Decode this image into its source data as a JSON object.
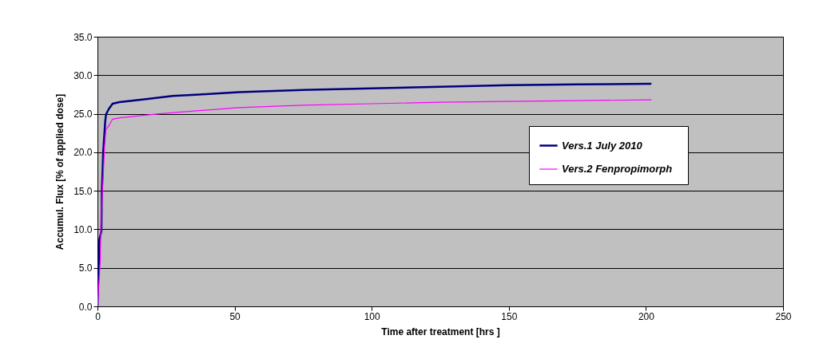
{
  "chart_data": {
    "type": "line",
    "xlabel": "Time after treatment [hrs ]",
    "ylabel": "Accumul. Flux [% of applied dose]",
    "xlim": [
      0,
      250
    ],
    "xticks": [
      0,
      50,
      100,
      150,
      200,
      250
    ],
    "ylim": [
      0,
      35
    ],
    "yticks": [
      {
        "value": 0,
        "label": "0.0"
      },
      {
        "value": 5,
        "label": "5.0"
      },
      {
        "value": 10,
        "label": "10.0"
      },
      {
        "value": 15,
        "label": "15.0"
      },
      {
        "value": 20,
        "label": "20.0"
      },
      {
        "value": 25,
        "label": "25.0"
      },
      {
        "value": 30,
        "label": "30.0"
      },
      {
        "value": 35,
        "label": "35.0"
      }
    ],
    "grid": "y",
    "legend": "right",
    "line_style": "solid",
    "series": [
      {
        "name": "Vers.1   July 2010",
        "color": "#000080",
        "x": [
          0,
          0.2,
          0.7,
          1.4,
          1.6,
          2.1,
          2.8,
          3.1,
          4.1,
          5.5,
          8,
          17.7,
          27.4,
          37.1,
          51.6,
          75,
          100,
          125,
          150,
          175,
          202
        ],
        "values": [
          0,
          2.1,
          8.7,
          9.7,
          14.9,
          20.1,
          23.9,
          24.9,
          25.6,
          26.3,
          26.5,
          26.9,
          27.3,
          27.5,
          27.8,
          28.1,
          28.3,
          28.5,
          28.7,
          28.8,
          28.9
        ]
      },
      {
        "name": "Vers.2   Fenpropimorph",
        "color": "#ff00ff",
        "x": [
          0,
          0.4,
          1,
          1.4,
          2,
          2.6,
          3.1,
          4.1,
          5.5,
          8.9,
          22.5,
          37,
          51.6,
          75,
          100,
          125,
          150,
          175,
          202
        ],
        "values": [
          0,
          2.5,
          5.6,
          12.1,
          16.3,
          20.8,
          23,
          23.4,
          24.3,
          24.5,
          25,
          25.4,
          25.8,
          26.1,
          26.3,
          26.5,
          26.6,
          26.7,
          26.8
        ]
      }
    ]
  }
}
